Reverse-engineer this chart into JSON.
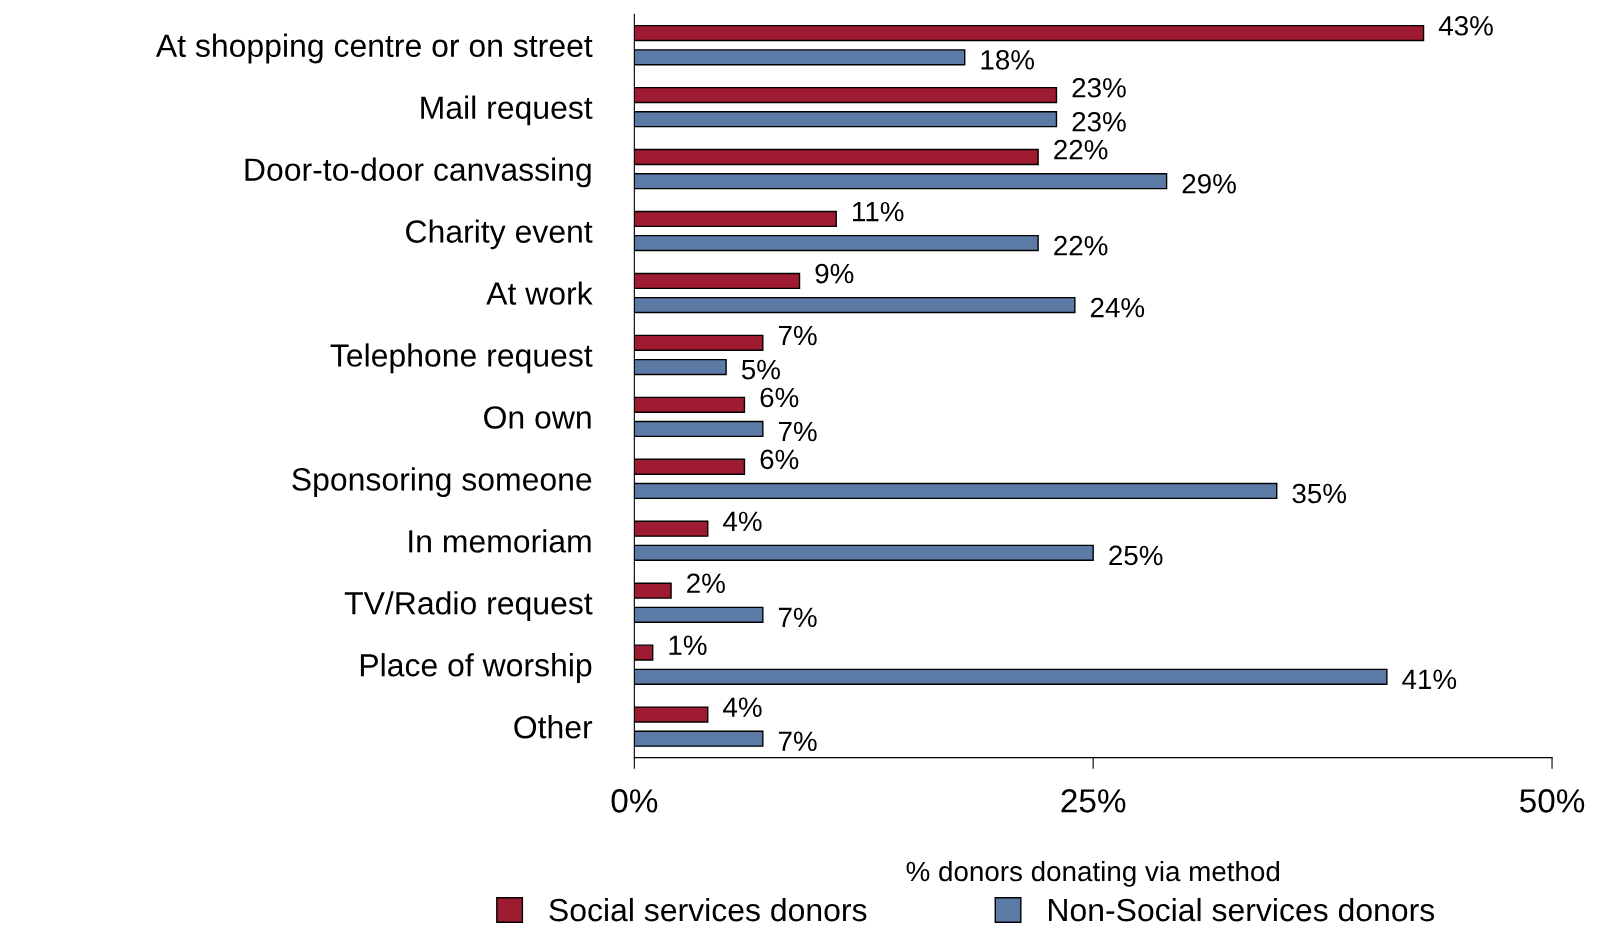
{
  "chart_data": {
    "type": "bar",
    "orientation": "horizontal",
    "xlabel": "% donors donating via method",
    "categories": [
      "At shopping centre or on street",
      "Mail request",
      "Door-to-door canvassing",
      "Charity event",
      "At work",
      "Telephone request",
      "On own",
      "Sponsoring someone",
      "In memoriam",
      "TV/Radio request",
      "Place of worship",
      "Other"
    ],
    "series": [
      {
        "name": "Social services donors",
        "color": "#9e1b32",
        "values": [
          43,
          23,
          22,
          11,
          9,
          7,
          6,
          6,
          4,
          2,
          1,
          4
        ],
        "value_labels": [
          "43%",
          "23%",
          "22%",
          "11%",
          "9%",
          "7%",
          "6%",
          "6%",
          "4%",
          "2%",
          "1%",
          "4%"
        ]
      },
      {
        "name": "Non-Social services donors",
        "color": "#5b7aa6",
        "values": [
          18,
          23,
          29,
          22,
          24,
          5,
          7,
          35,
          25,
          7,
          41,
          7
        ],
        "value_labels": [
          "18%",
          "23%",
          "29%",
          "22%",
          "24%",
          "5%",
          "7%",
          "35%",
          "25%",
          "7%",
          "41%",
          "7%"
        ]
      }
    ],
    "xlim": [
      0,
      50
    ],
    "xticks": [
      {
        "value": 0,
        "label": "0%"
      },
      {
        "value": 25,
        "label": "25%"
      },
      {
        "value": 50,
        "label": "50%"
      }
    ],
    "grid": false,
    "legend": "bottom"
  }
}
